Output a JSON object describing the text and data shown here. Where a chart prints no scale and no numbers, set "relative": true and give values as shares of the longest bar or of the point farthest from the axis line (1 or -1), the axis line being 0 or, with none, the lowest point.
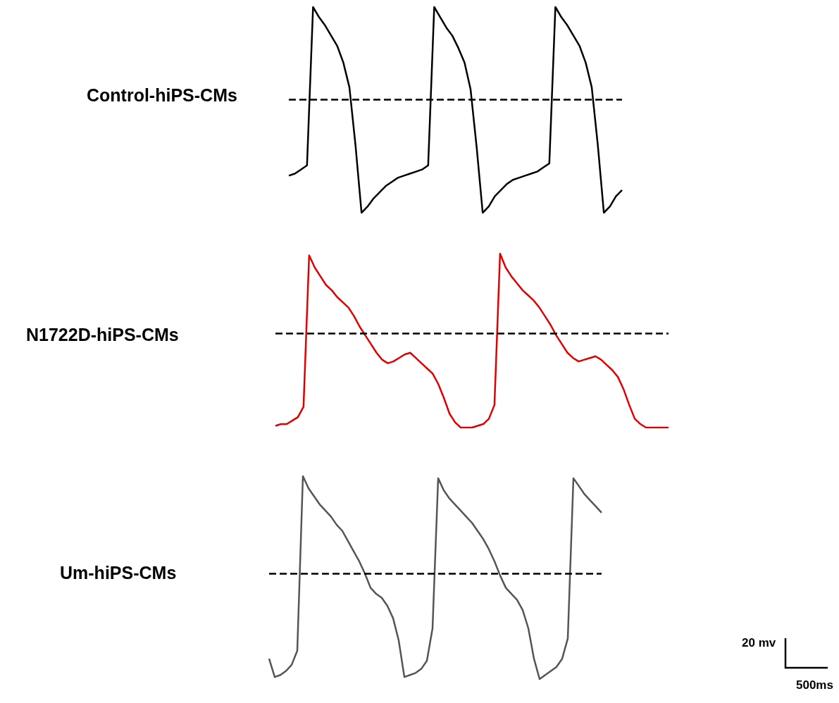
{
  "chart_data": [
    {
      "type": "line",
      "title": "Control-hiPS-CMs",
      "relative": true,
      "marker": "none",
      "tick_labels": false,
      "categories": [
        null,
        null,
        null,
        null,
        null,
        null,
        null,
        null,
        null,
        null,
        null,
        null,
        null,
        null,
        null,
        null,
        null,
        null,
        null,
        null,
        null,
        null,
        null,
        null,
        null,
        null,
        null,
        null,
        null,
        null,
        null,
        null,
        null,
        null,
        null,
        null,
        null,
        null,
        null,
        null,
        null,
        null,
        null,
        null,
        null,
        null,
        null,
        null,
        null,
        null,
        null,
        null,
        null,
        null,
        null,
        null
      ],
      "series": [
        {
          "color": "#000000",
          "values": [
            0.18,
            0.19,
            0.21,
            0.23,
            1.0,
            0.95,
            0.91,
            0.86,
            0.81,
            0.73,
            0.61,
            0.33,
            0.0,
            0.03,
            0.07,
            0.1,
            0.13,
            0.15,
            0.17,
            0.18,
            0.19,
            0.2,
            0.21,
            0.23,
            1.0,
            0.95,
            0.9,
            0.86,
            0.8,
            0.73,
            0.6,
            0.32,
            0.0,
            0.03,
            0.08,
            0.11,
            0.14,
            0.16,
            0.17,
            0.18,
            0.19,
            0.2,
            0.22,
            0.24,
            1.0,
            0.95,
            0.91,
            0.86,
            0.81,
            0.73,
            0.61,
            0.33,
            0.0,
            0.03,
            0.08,
            0.11
          ]
        }
      ],
      "ref_lines": [
        {
          "axis": "y",
          "value": 0.55,
          "color": "#000000",
          "line_style": "dashed"
        }
      ]
    },
    {
      "type": "line",
      "title": "N1722D-hiPS-CMs",
      "relative": true,
      "marker": "none",
      "tick_labels": false,
      "categories": [
        null,
        null,
        null,
        null,
        null,
        null,
        null,
        null,
        null,
        null,
        null,
        null,
        null,
        null,
        null,
        null,
        null,
        null,
        null,
        null,
        null,
        null,
        null,
        null,
        null,
        null,
        null,
        null,
        null,
        null,
        null,
        null,
        null,
        null,
        null,
        null,
        null,
        null,
        null,
        null,
        null,
        null,
        null,
        null,
        null,
        null,
        null,
        null,
        null,
        null,
        null,
        null,
        null,
        null,
        null,
        null,
        null,
        null,
        null,
        null,
        null,
        null,
        null,
        null,
        null,
        null,
        null,
        null,
        null,
        null,
        null
      ],
      "series": [
        {
          "color": "#e00000",
          "values": [
            0.01,
            0.02,
            0.02,
            0.04,
            0.06,
            0.12,
            0.99,
            0.92,
            0.87,
            0.82,
            0.79,
            0.75,
            0.72,
            0.69,
            0.64,
            0.58,
            0.53,
            0.48,
            0.43,
            0.39,
            0.37,
            0.38,
            0.4,
            0.42,
            0.43,
            0.4,
            0.37,
            0.34,
            0.31,
            0.25,
            0.17,
            0.08,
            0.03,
            0.0,
            0.0,
            0.0,
            0.01,
            0.02,
            0.05,
            0.13,
            1.0,
            0.92,
            0.87,
            0.83,
            0.79,
            0.76,
            0.73,
            0.69,
            0.64,
            0.59,
            0.53,
            0.48,
            0.43,
            0.4,
            0.38,
            0.39,
            0.4,
            0.41,
            0.39,
            0.36,
            0.33,
            0.29,
            0.22,
            0.13,
            0.05,
            0.02,
            0.0,
            0.0,
            0.0,
            0.0,
            0.0
          ]
        }
      ],
      "ref_lines": [
        {
          "axis": "y",
          "value": 0.54,
          "color": "#000000",
          "line_style": "dashed"
        }
      ]
    },
    {
      "type": "line",
      "title": "Um-hiPS-CMs",
      "relative": true,
      "marker": "none",
      "tick_labels": false,
      "categories": [
        null,
        null,
        null,
        null,
        null,
        null,
        null,
        null,
        null,
        null,
        null,
        null,
        null,
        null,
        null,
        null,
        null,
        null,
        null,
        null,
        null,
        null,
        null,
        null,
        null,
        null,
        null,
        null,
        null,
        null,
        null,
        null,
        null,
        null,
        null,
        null,
        null,
        null,
        null,
        null,
        null,
        null,
        null,
        null,
        null,
        null,
        null,
        null,
        null,
        null,
        null,
        null,
        null,
        null,
        null,
        null,
        null,
        null,
        null,
        null
      ],
      "series": [
        {
          "color": "#555555",
          "values": [
            0.1,
            0.01,
            0.02,
            0.04,
            0.07,
            0.14,
            1.0,
            0.94,
            0.9,
            0.86,
            0.83,
            0.8,
            0.76,
            0.73,
            0.68,
            0.63,
            0.58,
            0.52,
            0.45,
            0.42,
            0.4,
            0.36,
            0.3,
            0.19,
            0.01,
            0.02,
            0.03,
            0.05,
            0.09,
            0.25,
            0.99,
            0.93,
            0.89,
            0.86,
            0.83,
            0.8,
            0.77,
            0.73,
            0.69,
            0.64,
            0.58,
            0.51,
            0.45,
            0.42,
            0.39,
            0.34,
            0.25,
            0.1,
            0.0,
            0.02,
            0.04,
            0.06,
            0.1,
            0.2,
            0.99,
            0.95,
            0.91,
            0.88,
            0.85,
            0.82
          ]
        }
      ],
      "ref_lines": [
        {
          "axis": "y",
          "value": 0.52,
          "color": "#000000",
          "line_style": "dashed"
        }
      ],
      "annotations": [
        "20 mv",
        "500ms"
      ]
    }
  ]
}
